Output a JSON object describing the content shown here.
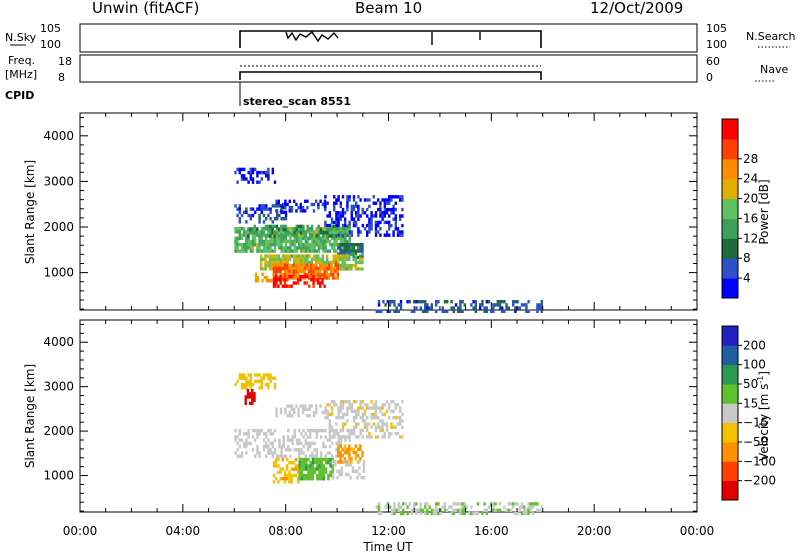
{
  "header": {
    "station": "Unwin (fitACF)",
    "beam": "Beam 10",
    "date": "12/Oct/2009"
  },
  "strips": {
    "nsky_label": "N.Sky",
    "nsky_ticks": [
      "10^5",
      "10^0"
    ],
    "nsearch_label": "N.Search",
    "nsearch_ticks": [
      "10^5",
      "10^0"
    ],
    "freq_label_1": "Freq.",
    "freq_label_2": "[MHz]",
    "freq_ticks": [
      "18",
      "8"
    ],
    "nave_label": "Nave",
    "nave_ticks": [
      "60",
      "0"
    ],
    "cpid_label": "CPID",
    "cpid_text": "stereo_scan 8551"
  },
  "x_ticks": [
    "00:00",
    "04:00",
    "08:00",
    "12:00",
    "16:00",
    "20:00",
    "00:00"
  ],
  "x_label": "Time UT",
  "colors": {
    "power": [
      "#0000ff",
      "#2f4fc8",
      "#1f6a3a",
      "#3fa05a",
      "#60c060",
      "#e0b000",
      "#ff8c00",
      "#ff4000",
      "#ff0000"
    ],
    "velocity": [
      "#e00000",
      "#ff4000",
      "#ff9000",
      "#f5c000",
      "#c8c8c8",
      "#60c030",
      "#2a9a50",
      "#2060a0",
      "#2020c0"
    ]
  },
  "chart_data": [
    {
      "type": "heatmap",
      "ylabel": "Slant Range [km]",
      "yticks": [
        "1000",
        "2000",
        "3000",
        "4000"
      ],
      "ylim": [
        180,
        4500
      ],
      "xlim_hours": [
        0,
        24
      ],
      "colorbar": {
        "label": "Power [dB]",
        "ticks": [
          "4",
          "8",
          "12",
          "16",
          "20",
          "24",
          "28"
        ],
        "range": [
          0,
          32
        ]
      },
      "regions": [
        {
          "t": [
            6.0,
            7.6
          ],
          "r": [
            2950,
            3300
          ],
          "v": 3
        },
        {
          "t": [
            7.6,
            9.5
          ],
          "r": [
            2350,
            2600
          ],
          "v": 3
        },
        {
          "t": [
            9.5,
            12.5
          ],
          "r": [
            1850,
            2700
          ],
          "v": 3
        },
        {
          "t": [
            6.0,
            8.0
          ],
          "r": [
            2100,
            2500
          ],
          "v": 5
        },
        {
          "t": [
            6.0,
            10.5
          ],
          "r": [
            1450,
            2000
          ],
          "v": 15
        },
        {
          "t": [
            6.5,
            10.5
          ],
          "r": [
            1800,
            2050
          ],
          "v": 11
        },
        {
          "t": [
            10.0,
            11.0
          ],
          "r": [
            1300,
            1650
          ],
          "v": 8
        },
        {
          "t": [
            7.0,
            11.0
          ],
          "r": [
            1050,
            1400
          ],
          "v": 17
        },
        {
          "t": [
            7.5,
            10.0
          ],
          "r": [
            900,
            1200
          ],
          "v": 24
        },
        {
          "t": [
            7.5,
            9.5
          ],
          "r": [
            700,
            950
          ],
          "v": 30
        },
        {
          "t": [
            6.8,
            7.5
          ],
          "r": [
            800,
            1000
          ],
          "v": 22
        },
        {
          "t": [
            11.5,
            18.0
          ],
          "r": [
            180,
            400
          ],
          "v": 6
        }
      ]
    },
    {
      "type": "heatmap",
      "ylabel": "Slant Range [km]",
      "yticks": [
        "1000",
        "2000",
        "3000",
        "4000"
      ],
      "ylim": [
        180,
        4500
      ],
      "xlim_hours": [
        0,
        24
      ],
      "colorbar": {
        "label": "Velocity [m s^-1]",
        "ticks": [
          "-200",
          "-100",
          "-50",
          "-15",
          "15",
          "50",
          "100",
          "200"
        ],
        "range": [
          -250,
          250
        ]
      },
      "regions": [
        {
          "t": [
            6.0,
            7.6
          ],
          "r": [
            3000,
            3300
          ],
          "v": -30
        },
        {
          "t": [
            6.4,
            6.8
          ],
          "r": [
            2600,
            2950
          ],
          "v": -220
        },
        {
          "t": [
            7.6,
            9.5
          ],
          "r": [
            2350,
            2600
          ],
          "v": 0
        },
        {
          "t": [
            9.5,
            12.5
          ],
          "r": [
            1850,
            2700
          ],
          "v": -5
        },
        {
          "t": [
            6.0,
            10.5
          ],
          "r": [
            1450,
            2050
          ],
          "v": 0
        },
        {
          "t": [
            10.0,
            11.0
          ],
          "r": [
            1300,
            1700
          ],
          "v": -60
        },
        {
          "t": [
            7.5,
            8.5
          ],
          "r": [
            850,
            1400
          ],
          "v": -40
        },
        {
          "t": [
            8.5,
            9.8
          ],
          "r": [
            900,
            1400
          ],
          "v": 40
        },
        {
          "t": [
            9.8,
            11.0
          ],
          "r": [
            950,
            1350
          ],
          "v": 0
        },
        {
          "t": [
            11.5,
            18.0
          ],
          "r": [
            180,
            400
          ],
          "v": 10
        }
      ]
    }
  ]
}
